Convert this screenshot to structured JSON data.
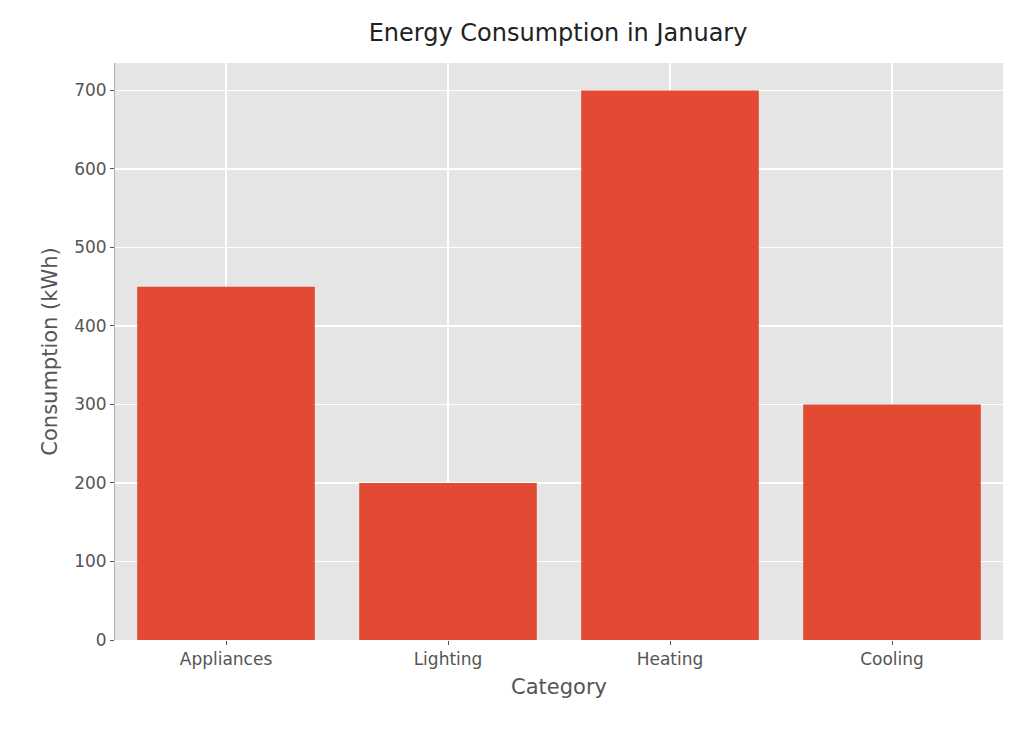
{
  "chart_data": {
    "type": "bar",
    "title": "Energy Consumption in January",
    "x_label": "Category",
    "y_label": "Consumption (kWh)",
    "categories": [
      "Appliances",
      "Lighting",
      "Heating",
      "Cooling"
    ],
    "values": [
      450,
      200,
      700,
      300
    ],
    "color": "#e24a33",
    "ylim": [
      0,
      735
    ],
    "yticks": [
      0,
      100,
      200,
      300,
      400,
      500,
      600,
      700
    ],
    "grid": true
  }
}
